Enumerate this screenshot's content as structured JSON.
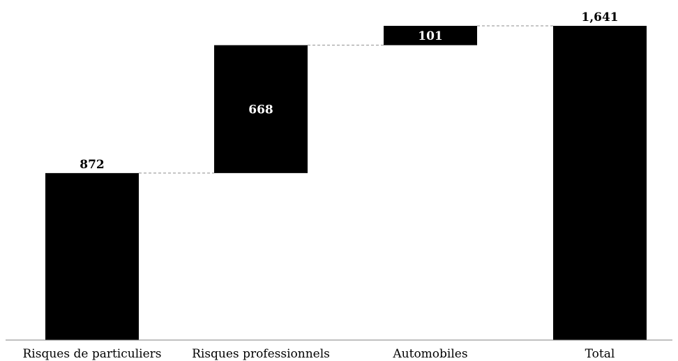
{
  "chart_data": {
    "type": "bar",
    "subtype": "waterfall",
    "categories": [
      "Risques de particuliers",
      "Risques professionnels",
      "Automobiles",
      "Total"
    ],
    "values": [
      872,
      668,
      101,
      1641
    ],
    "value_labels": [
      "872",
      "668",
      "101",
      "1,641"
    ],
    "bar_kinds": [
      "increase",
      "increase",
      "increase",
      "total"
    ],
    "title": "",
    "xlabel": "",
    "ylabel": "",
    "ylim": [
      0,
      1641
    ],
    "grid": false,
    "legend": "none",
    "colors": {
      "bar": "#000000",
      "inside_label": "#ffffff",
      "outside_label": "#000000",
      "connector": "#8c8c8c"
    }
  }
}
